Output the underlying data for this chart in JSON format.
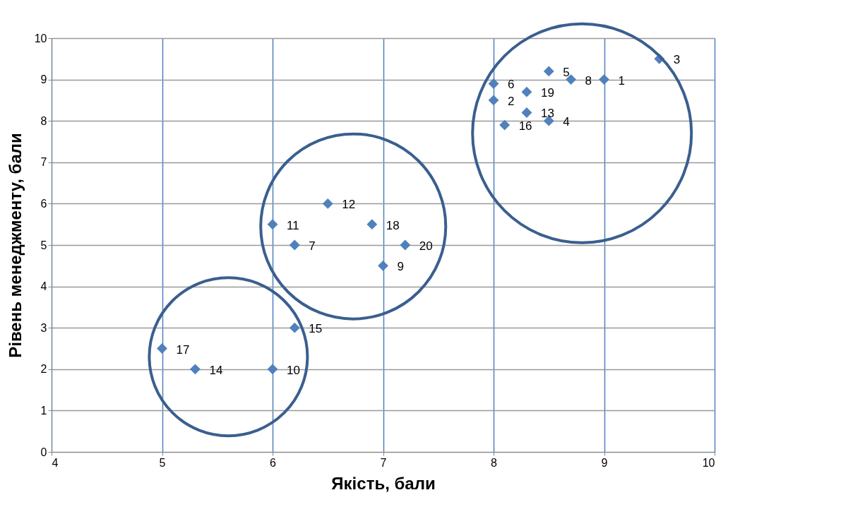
{
  "chart_data": {
    "type": "scatter",
    "xlabel": "Якість, бали",
    "ylabel": "Рівень менеджменту, бали",
    "x": [
      9.0,
      8.0,
      9.5,
      8.5,
      8.5,
      8.0,
      6.2,
      8.7,
      7.0,
      6.0,
      6.0,
      6.5,
      8.3,
      5.3,
      6.2,
      8.1,
      5.0,
      6.9,
      8.3,
      7.2
    ],
    "series": [
      {
        "color": "#4f81bd",
        "values": [
          9.0,
          8.5,
          9.5,
          8.0,
          9.2,
          8.9,
          5.0,
          9.0,
          4.5,
          2.0,
          5.5,
          6.0,
          8.2,
          2.0,
          3.0,
          7.9,
          2.5,
          5.5,
          8.7,
          5.0
        ]
      }
    ],
    "annotations": [
      {
        "text": "1",
        "x": 9.0,
        "y": 9.0
      },
      {
        "text": "2",
        "x": 8.0,
        "y": 8.5
      },
      {
        "text": "3",
        "x": 9.5,
        "y": 9.5
      },
      {
        "text": "4",
        "x": 8.5,
        "y": 8.0
      },
      {
        "text": "5",
        "x": 8.5,
        "y": 9.2
      },
      {
        "text": "6",
        "x": 8.0,
        "y": 8.9
      },
      {
        "text": "7",
        "x": 6.2,
        "y": 5.0
      },
      {
        "text": "8",
        "x": 8.7,
        "y": 9.0
      },
      {
        "text": "9",
        "x": 7.0,
        "y": 4.5
      },
      {
        "text": "10",
        "x": 6.0,
        "y": 2.0
      },
      {
        "text": "11",
        "x": 6.0,
        "y": 5.5
      },
      {
        "text": "12",
        "x": 6.5,
        "y": 6.0
      },
      {
        "text": "13",
        "x": 8.3,
        "y": 8.2
      },
      {
        "text": "14",
        "x": 5.3,
        "y": 2.0
      },
      {
        "text": "15",
        "x": 6.2,
        "y": 3.0
      },
      {
        "text": "16",
        "x": 8.1,
        "y": 7.9
      },
      {
        "text": "17",
        "x": 5.0,
        "y": 2.5
      },
      {
        "text": "18",
        "x": 6.9,
        "y": 5.5
      },
      {
        "text": "19",
        "x": 8.3,
        "y": 8.7
      },
      {
        "text": "20",
        "x": 7.2,
        "y": 5.0
      }
    ],
    "xlim": [
      4,
      10
    ],
    "xticks": [
      4,
      5,
      6,
      7,
      8,
      9,
      10
    ],
    "ylim": [
      0,
      10
    ],
    "yticks": [
      0,
      1,
      2,
      3,
      4,
      5,
      6,
      7,
      8,
      9,
      10
    ],
    "grid": true,
    "marker": "diamond"
  }
}
